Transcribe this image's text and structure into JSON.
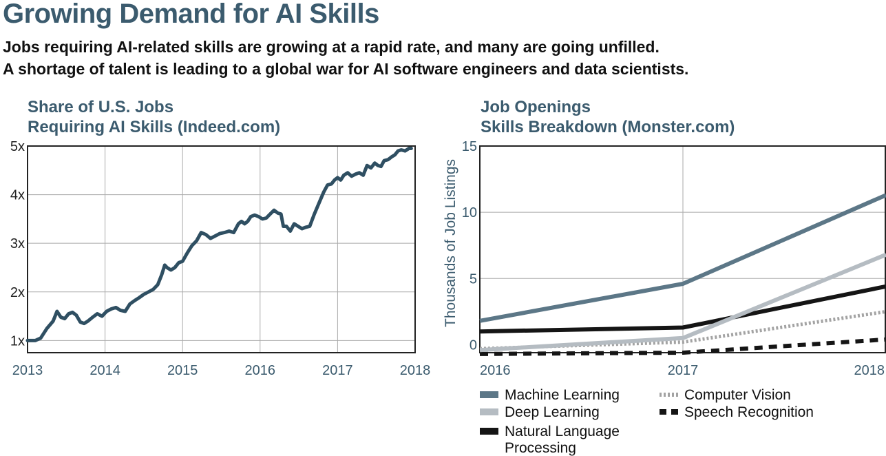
{
  "header": {
    "title": "Growing Demand for AI Skills",
    "subtitle_line1": "Jobs requiring AI-related skills are growing at a rapid rate, and many are going unfilled.",
    "subtitle_line2": "A shortage of talent is leading to a global war for AI software engineers and data scientists."
  },
  "colors": {
    "text_accent": "#3b5b6e",
    "grid": "#aaaaaa",
    "frame": "#222222"
  },
  "chart_data": [
    {
      "type": "line",
      "title_line1": "Share of U.S. Jobs",
      "title_line2": "Requiring AI Skills (Indeed.com)",
      "xlabel": "",
      "ylabel": "",
      "xlim": [
        2013,
        2018
      ],
      "ylim": [
        0.75,
        5
      ],
      "x_ticks": [
        "2013",
        "2014",
        "2015",
        "2016",
        "2017",
        "2018"
      ],
      "y_ticks": [
        "1x",
        "2x",
        "3x",
        "4x",
        "5x"
      ],
      "y_tick_values": [
        1,
        2,
        3,
        4,
        5
      ],
      "grid": true,
      "series": [
        {
          "color": "#2f4f62",
          "x": [
            2013.0,
            2013.1,
            2013.17,
            2013.25,
            2013.33,
            2013.38,
            2013.43,
            2013.48,
            2013.53,
            2013.58,
            2013.63,
            2013.68,
            2013.73,
            2013.78,
            2013.84,
            2013.9,
            2013.96,
            2014.02,
            2014.08,
            2014.14,
            2014.2,
            2014.26,
            2014.32,
            2014.38,
            2014.44,
            2014.5,
            2014.56,
            2014.62,
            2014.68,
            2014.73,
            2014.77,
            2014.8,
            2014.85,
            2014.9,
            2014.95,
            2015.0,
            2015.06,
            2015.12,
            2015.18,
            2015.24,
            2015.3,
            2015.36,
            2015.42,
            2015.48,
            2015.54,
            2015.6,
            2015.66,
            2015.72,
            2015.76,
            2015.8,
            2015.84,
            2015.88,
            2015.93,
            2015.98,
            2016.03,
            2016.08,
            2016.13,
            2016.18,
            2016.23,
            2016.27,
            2016.3,
            2016.34,
            2016.39,
            2016.44,
            2016.49,
            2016.54,
            2016.59,
            2016.64,
            2016.7,
            2016.74,
            2016.78,
            2016.82,
            2016.87,
            2016.92,
            2016.96,
            2017.0,
            2017.04,
            2017.08,
            2017.13,
            2017.18,
            2017.23,
            2017.28,
            2017.33,
            2017.38,
            2017.43,
            2017.48,
            2017.52,
            2017.56,
            2017.6,
            2017.65,
            2017.7,
            2017.74,
            2017.78,
            2017.82,
            2017.87,
            2017.92,
            2017.95
          ],
          "y": [
            1.0,
            1.0,
            1.05,
            1.25,
            1.4,
            1.6,
            1.48,
            1.45,
            1.55,
            1.58,
            1.52,
            1.38,
            1.35,
            1.4,
            1.48,
            1.55,
            1.5,
            1.6,
            1.65,
            1.68,
            1.62,
            1.6,
            1.75,
            1.82,
            1.88,
            1.95,
            2.0,
            2.05,
            2.15,
            2.35,
            2.55,
            2.5,
            2.45,
            2.5,
            2.6,
            2.63,
            2.8,
            2.95,
            3.05,
            3.22,
            3.18,
            3.1,
            3.15,
            3.2,
            3.22,
            3.25,
            3.22,
            3.4,
            3.45,
            3.4,
            3.45,
            3.55,
            3.58,
            3.55,
            3.5,
            3.52,
            3.6,
            3.68,
            3.62,
            3.6,
            3.35,
            3.35,
            3.25,
            3.4,
            3.35,
            3.3,
            3.33,
            3.35,
            3.6,
            3.75,
            3.9,
            4.05,
            4.2,
            4.22,
            4.3,
            4.35,
            4.3,
            4.4,
            4.45,
            4.38,
            4.42,
            4.45,
            4.4,
            4.6,
            4.55,
            4.65,
            4.6,
            4.58,
            4.7,
            4.72,
            4.78,
            4.82,
            4.9,
            4.92,
            4.9,
            4.95,
            4.95
          ]
        }
      ]
    },
    {
      "type": "line",
      "title_line1": "Job Openings",
      "title_line2": "Skills Breakdown (Monster.com)",
      "xlabel": "",
      "ylabel": "Thousands of Job Listings",
      "categories": [
        "2016",
        "2017",
        "2018"
      ],
      "ylim": [
        -0.6,
        15
      ],
      "y_ticks": [
        "0",
        "5",
        "10",
        "15"
      ],
      "y_tick_values": [
        0,
        5,
        10,
        15
      ],
      "grid": true,
      "legend_position": "bottom",
      "series": [
        {
          "name": "Machine Learning",
          "values": [
            1.8,
            4.6,
            11.3
          ],
          "color": "#5c7787",
          "style": "solid"
        },
        {
          "name": "Deep Learning",
          "values": [
            -0.4,
            0.5,
            6.8
          ],
          "color": "#b5bcc2",
          "style": "solid"
        },
        {
          "name": "Natural Language Processing",
          "values": [
            1.0,
            1.3,
            4.4
          ],
          "color": "#151515",
          "style": "solid"
        },
        {
          "name": "Computer Vision",
          "values": [
            -0.3,
            0.2,
            2.5
          ],
          "color": "#a3a3a3",
          "style": "dotted"
        },
        {
          "name": "Speech Recognition",
          "values": [
            -0.7,
            -0.6,
            0.4
          ],
          "color": "#151515",
          "style": "dashed"
        }
      ]
    }
  ]
}
